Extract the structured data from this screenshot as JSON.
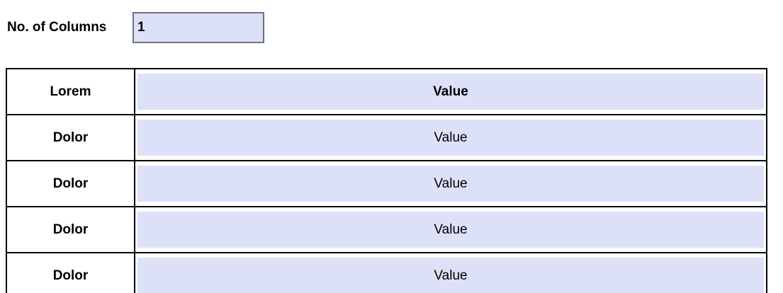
{
  "form": {
    "columns_label": "No. of Columns",
    "columns_value": "1"
  },
  "table": {
    "header": {
      "label": "Lorem",
      "value": "Value"
    },
    "rows": [
      {
        "label": "Dolor",
        "value": "Value"
      },
      {
        "label": "Dolor",
        "value": "Value"
      },
      {
        "label": "Dolor",
        "value": "Value"
      },
      {
        "label": "Dolor",
        "value": "Value"
      }
    ]
  },
  "colors": {
    "field_bg": "#dde1f8",
    "field_border": "#6e7283",
    "table_border": "#000000"
  }
}
